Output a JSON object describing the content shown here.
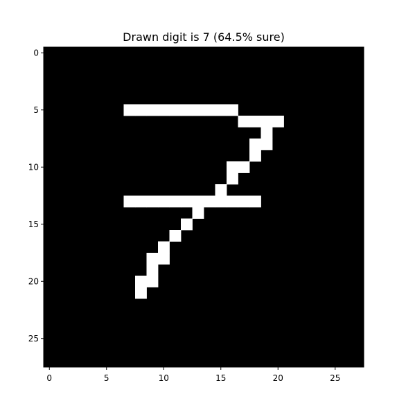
{
  "chart_data": {
    "type": "heatmap",
    "title": "Drawn digit is 7 (64.5% sure)",
    "xlabel": "",
    "ylabel": "",
    "rows": 28,
    "cols": 28,
    "colormap": "gray",
    "background_color": "#000000",
    "foreground_color": "#ffffff",
    "x_ticks": [
      0,
      5,
      10,
      15,
      20,
      25
    ],
    "y_ticks": [
      0,
      5,
      10,
      15,
      20,
      25
    ],
    "x_tick_labels": [
      "0",
      "5",
      "10",
      "15",
      "20",
      "25"
    ],
    "y_tick_labels": [
      "0",
      "5",
      "10",
      "15",
      "20",
      "25"
    ],
    "white_pixels": [
      [
        5,
        7
      ],
      [
        5,
        8
      ],
      [
        5,
        9
      ],
      [
        5,
        10
      ],
      [
        5,
        11
      ],
      [
        5,
        12
      ],
      [
        5,
        13
      ],
      [
        5,
        14
      ],
      [
        5,
        15
      ],
      [
        5,
        16
      ],
      [
        6,
        17
      ],
      [
        6,
        18
      ],
      [
        6,
        19
      ],
      [
        6,
        20
      ],
      [
        7,
        19
      ],
      [
        8,
        18
      ],
      [
        8,
        19
      ],
      [
        9,
        18
      ],
      [
        10,
        16
      ],
      [
        10,
        17
      ],
      [
        11,
        16
      ],
      [
        12,
        15
      ],
      [
        13,
        7
      ],
      [
        13,
        8
      ],
      [
        13,
        9
      ],
      [
        13,
        10
      ],
      [
        13,
        11
      ],
      [
        13,
        12
      ],
      [
        13,
        13
      ],
      [
        13,
        14
      ],
      [
        13,
        15
      ],
      [
        13,
        16
      ],
      [
        13,
        17
      ],
      [
        13,
        18
      ],
      [
        14,
        13
      ],
      [
        15,
        12
      ],
      [
        16,
        11
      ],
      [
        17,
        10
      ],
      [
        18,
        9
      ],
      [
        18,
        10
      ],
      [
        19,
        9
      ],
      [
        20,
        8
      ],
      [
        20,
        9
      ],
      [
        21,
        8
      ]
    ]
  }
}
